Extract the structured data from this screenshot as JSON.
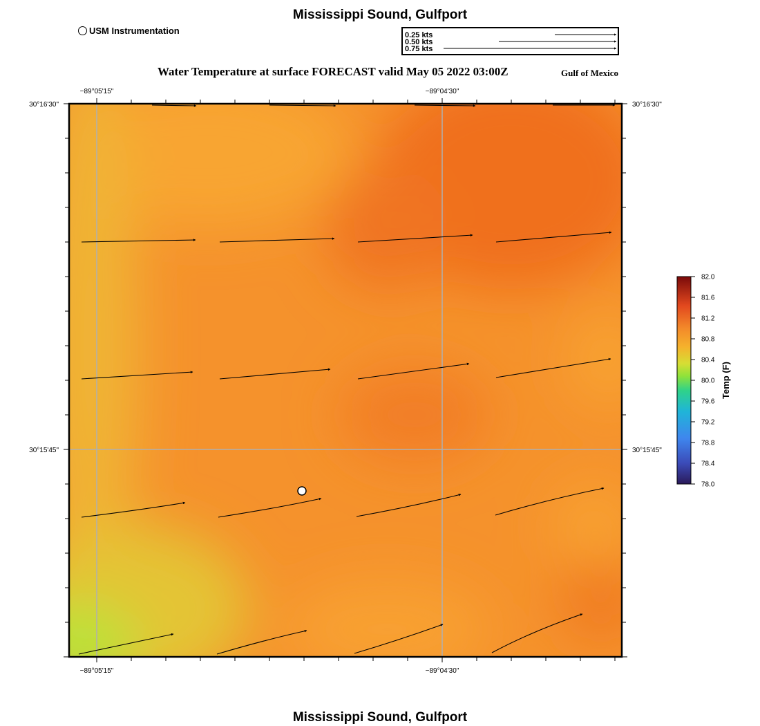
{
  "title": "Mississippi Sound, Gulfport",
  "footer_title": "Mississippi Sound, Gulfport",
  "station_legend": "USM Instrumentation",
  "subtitle": "Water Temperature at surface FORECAST valid May 05 2022 03:00Z",
  "region_label": "Gulf of Mexico",
  "vector_legend": [
    "0.25 kts",
    "0.50 kts",
    "0.75 kts"
  ],
  "axes": {
    "top_lon_labels": [
      "−89°05'15\"",
      "−89°04'30\""
    ],
    "bottom_lon_labels": [
      "−89°05'15\"",
      "−89°04'30\""
    ],
    "left_lat_labels": [
      "30°16'30\"",
      "30°15'45\""
    ],
    "right_lat_labels": [
      "30°16'30\"",
      "30°15'45\""
    ]
  },
  "colorbar": {
    "title": "Temp (F)",
    "min": 78.0,
    "max": 82.0,
    "tick_labels": [
      "82.0",
      "81.6",
      "81.2",
      "80.8",
      "80.4",
      "80.0",
      "79.6",
      "79.2",
      "78.8",
      "78.4",
      "78.0"
    ]
  },
  "colors": {
    "field_dominant": "#f5922c",
    "field_warm": "#f06f1f",
    "field_cool_corner": "#b8e43a",
    "grid": "#b0b0b0"
  }
}
